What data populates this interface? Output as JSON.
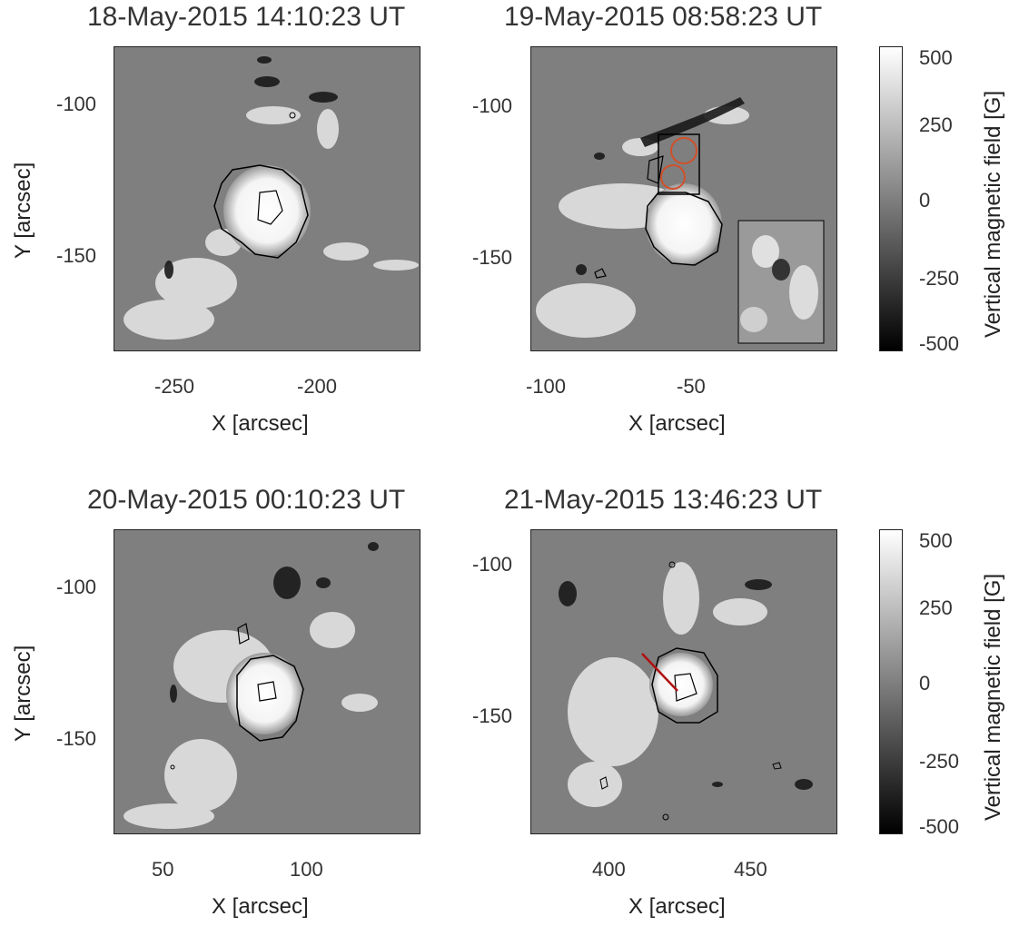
{
  "panels": [
    {
      "title": "18-May-2015 14:10:23 UT",
      "xlabel": "X [arcsec]",
      "ylabel": "Y [arcsec]",
      "xticks": [
        "-250",
        "-200"
      ],
      "yticks": [
        "-100",
        "-150"
      ]
    },
    {
      "title": "19-May-2015 08:58:23 UT",
      "xlabel": "X [arcsec]",
      "xticks": [
        "-100",
        "-50"
      ],
      "yticks": [
        "-100",
        "-150"
      ]
    },
    {
      "title": "20-May-2015 00:10:23 UT",
      "xlabel": "X [arcsec]",
      "ylabel": "Y [arcsec]",
      "xticks": [
        "50",
        "100"
      ],
      "yticks": [
        "-100",
        "-150"
      ]
    },
    {
      "title": "21-May-2015 13:46:23 UT",
      "xlabel": "X [arcsec]",
      "xticks": [
        "400",
        "450"
      ],
      "yticks": [
        "-100",
        "-150"
      ]
    }
  ],
  "colorbar": {
    "label": "Vertical magnetic field [G]",
    "ticks": [
      "500",
      "250",
      "0",
      "-250",
      "-500"
    ]
  },
  "colors": {
    "annotation_circle": "#d0502a",
    "annotation_line": "#b01010"
  }
}
